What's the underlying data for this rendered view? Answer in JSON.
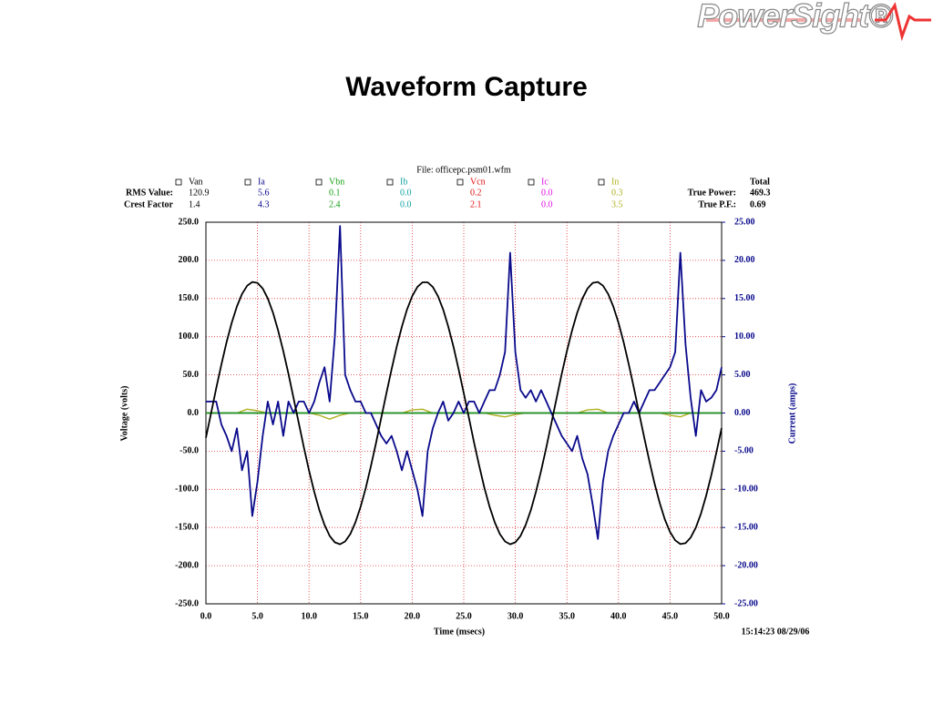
{
  "header": {
    "logo": "PowerSight®",
    "title": "Waveform Capture"
  },
  "chart_data": {
    "type": "line",
    "file": "File: officepc.psm01.wfm",
    "xlabel": "Time (msecs)",
    "ylabel": "Voltage (volts)",
    "y2label": "Current (amps)",
    "timestamp": "15:14:23 08/29/06",
    "row_labels": [
      "RMS Value:",
      "Crest Factor"
    ],
    "total": {
      "title": "Total",
      "items": [
        {
          "label": "True Power:",
          "value": "469.3"
        },
        {
          "label": "True P.F.:",
          "value": "0.69"
        }
      ]
    },
    "grid": true,
    "xlim": [
      0,
      50
    ],
    "ylim": [
      -250,
      250
    ],
    "y2lim": [
      -25,
      25
    ],
    "xticks": [
      {
        "value": 0,
        "label": "0.0"
      },
      {
        "value": 5,
        "label": "5.0"
      },
      {
        "value": 10,
        "label": "10.0"
      },
      {
        "value": 15,
        "label": "15.0"
      },
      {
        "value": 20,
        "label": "20.0"
      },
      {
        "value": 25,
        "label": "25.0"
      },
      {
        "value": 30,
        "label": "30.0"
      },
      {
        "value": 35,
        "label": "35.0"
      },
      {
        "value": 40,
        "label": "40.0"
      },
      {
        "value": 45,
        "label": "45.0"
      },
      {
        "value": 50,
        "label": "50.0"
      }
    ],
    "yticks": [
      {
        "value": 250,
        "label": "250.0"
      },
      {
        "value": 200,
        "label": "200.0"
      },
      {
        "value": 150,
        "label": "150.0"
      },
      {
        "value": 100,
        "label": "100.0"
      },
      {
        "value": 50,
        "label": "50.0"
      },
      {
        "value": 0,
        "label": "0.0"
      },
      {
        "value": -50,
        "label": "-50.0"
      },
      {
        "value": -100,
        "label": "-100.0"
      },
      {
        "value": -150,
        "label": "-150.0"
      },
      {
        "value": -200,
        "label": "-200.0"
      },
      {
        "value": -250,
        "label": "-250.0"
      }
    ],
    "y2ticks": [
      {
        "value": 25,
        "label": "25.00"
      },
      {
        "value": 20,
        "label": "20.00"
      },
      {
        "value": 15,
        "label": "15.00"
      },
      {
        "value": 10,
        "label": "10.00"
      },
      {
        "value": 5,
        "label": "5.00"
      },
      {
        "value": 0,
        "label": "0.00"
      },
      {
        "value": -5,
        "label": "-5.00"
      },
      {
        "value": -10,
        "label": "-10.00"
      },
      {
        "value": -15,
        "label": "-15.00"
      },
      {
        "value": -20,
        "label": "-20.00"
      },
      {
        "value": -25,
        "label": "-25.00"
      }
    ],
    "x": [
      0,
      0.5,
      1,
      1.5,
      2,
      2.5,
      3,
      3.5,
      4,
      4.5,
      5,
      5.5,
      6,
      6.5,
      7,
      7.5,
      8,
      8.5,
      9,
      9.5,
      10,
      10.5,
      11,
      11.5,
      12,
      12.5,
      13,
      13.5,
      14,
      14.5,
      15,
      15.5,
      16,
      16.5,
      17,
      17.5,
      18,
      18.5,
      19,
      19.5,
      20,
      20.5,
      21,
      21.5,
      22,
      22.5,
      23,
      23.5,
      24,
      24.5,
      25,
      25.5,
      26,
      26.5,
      27,
      27.5,
      28,
      28.5,
      29,
      29.5,
      30,
      30.5,
      31,
      31.5,
      32,
      32.5,
      33,
      33.5,
      34,
      34.5,
      35,
      35.5,
      36,
      36.5,
      37,
      37.5,
      38,
      38.5,
      39,
      39.5,
      40,
      40.5,
      41,
      41.5,
      42,
      42.5,
      43,
      43.5,
      44,
      44.5,
      45,
      45.5,
      46,
      46.5,
      47,
      47.5,
      48,
      48.5,
      49,
      49.5,
      50
    ],
    "series": [
      {
        "name": "Van",
        "color": "#000000",
        "rms": "120.9",
        "crest": "1.4",
        "values": [
          -32.4,
          0,
          32.4,
          63.6,
          92.5,
          118.1,
          139.6,
          156.0,
          166.8,
          171.7,
          170.5,
          163.2,
          150.1,
          131.5,
          108.4,
          81.3,
          51.3,
          19.5,
          -13.0,
          -45.0,
          -75.5,
          -103.2,
          -127.2,
          -146.7,
          -161.0,
          -169.5,
          -172.0,
          -168.3,
          -158.6,
          -143.2,
          -122.8,
          -98.0,
          -69.6,
          -38.8,
          -6.5,
          25.9,
          57.4,
          86.9,
          113.3,
          135.6,
          153.1,
          165.1,
          171.2,
          171.2,
          165.1,
          153.1,
          135.6,
          113.3,
          87.0,
          57.5,
          26.0,
          -6.5,
          -38.7,
          -69.5,
          -97.9,
          -122.7,
          -143.2,
          -158.6,
          -168.3,
          -172.0,
          -169.5,
          -161.0,
          -146.8,
          -127.3,
          -103.3,
          -75.5,
          -45.1,
          -13.1,
          19.4,
          51.2,
          81.2,
          108.3,
          131.4,
          150.0,
          163.1,
          170.5,
          171.7,
          166.8,
          156.0,
          139.6,
          118.2,
          92.6,
          63.7,
          32.5,
          0.1,
          -32.3,
          -63.5,
          -92.4,
          -118.0,
          -139.5,
          -155.9,
          -166.8,
          -171.7,
          -170.5,
          -163.2,
          -150.1,
          -131.6,
          -108.5,
          -81.4,
          -51.4,
          -19.6
        ]
      },
      {
        "name": "Ia",
        "color": "#0a0a8c",
        "axis": "y2",
        "rms": "5.6",
        "crest": "4.3",
        "values": [
          1.5,
          1.5,
          1.5,
          -1.5,
          -3,
          -5,
          -2,
          -7.5,
          -5,
          -13.5,
          -9,
          -3,
          1.5,
          -1.5,
          1.5,
          -3,
          1.5,
          0,
          1.5,
          1.5,
          0,
          1.5,
          4,
          6,
          1.5,
          10,
          24.5,
          5,
          3,
          1.5,
          1.5,
          0,
          0,
          -1.5,
          -3,
          -4,
          -3,
          -5,
          -7.5,
          -5,
          -7.5,
          -10,
          -13.5,
          -5,
          -2,
          0,
          1.5,
          -1,
          0,
          1.5,
          0,
          1.5,
          1.5,
          0,
          1.5,
          3,
          3,
          5,
          8,
          21,
          8,
          3,
          2,
          3,
          1.5,
          3,
          1.5,
          0,
          -1.5,
          -3,
          -4,
          -5,
          -3,
          -6,
          -8,
          -12,
          -16.5,
          -9,
          -5,
          -3,
          -1.5,
          0,
          0,
          1.5,
          0,
          1.5,
          3,
          3,
          4,
          5,
          6,
          8,
          21,
          9,
          2,
          -3,
          3,
          1.5,
          2,
          3,
          6
        ]
      },
      {
        "name": "Vbn",
        "color": "#18a018",
        "rms": "0.1",
        "crest": "2.4",
        "x": [
          0,
          50
        ],
        "values": [
          0,
          0
        ]
      },
      {
        "name": "Ib",
        "color": "#10a0a0",
        "axis": "y2",
        "rms": "0.0",
        "crest": "0.0",
        "x": [
          0,
          50
        ],
        "values": [
          0,
          0
        ]
      },
      {
        "name": "Vcn",
        "color": "#e01010",
        "rms": "0.2",
        "crest": "2.1",
        "x": [
          0,
          50
        ],
        "values": [
          0,
          0
        ]
      },
      {
        "name": "Ic",
        "color": "#e010e0",
        "axis": "y2",
        "rms": "0.0",
        "crest": "0.0",
        "x": [
          0,
          50
        ],
        "values": [
          0,
          0
        ]
      },
      {
        "name": "In",
        "color": "#b0b020",
        "axis": "y2",
        "rms": "0.3",
        "crest": "3.5",
        "x": [
          0,
          3,
          4,
          5,
          6,
          10,
          11,
          12,
          13,
          14,
          19,
          20,
          21,
          22,
          27,
          28,
          29,
          30,
          31,
          36,
          37,
          38,
          39,
          44,
          45,
          46,
          47,
          50
        ],
        "values": [
          0,
          0,
          0.5,
          0.3,
          0,
          0,
          -0.3,
          -0.8,
          -0.3,
          0,
          0,
          0.4,
          0.5,
          0,
          0,
          -0.3,
          -0.5,
          -0.2,
          0,
          0,
          0.4,
          0.5,
          0,
          0,
          -0.3,
          -0.5,
          0,
          0
        ]
      }
    ]
  }
}
